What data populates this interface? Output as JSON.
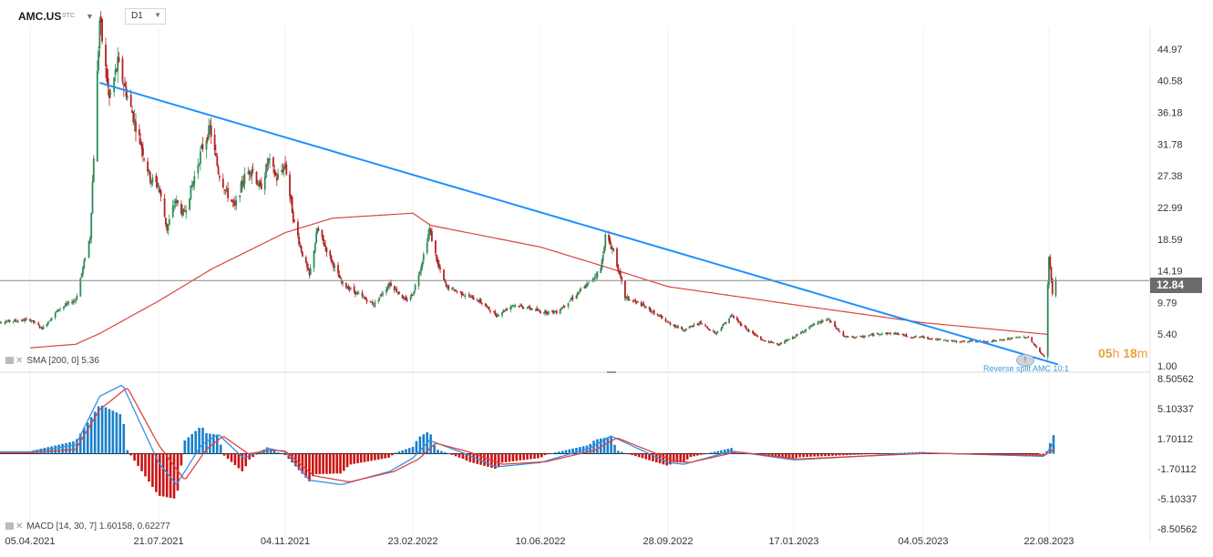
{
  "header": {
    "symbol": "AMC.US",
    "symbol_type": "STC",
    "timeframe": "D1"
  },
  "price_panel": {
    "current_price_label": "12.84",
    "y_ticks": [
      "44.97",
      "40.58",
      "36.18",
      "31.78",
      "27.38",
      "22.99",
      "18.59",
      "14.19",
      "9.79",
      "5.40",
      "1.00"
    ],
    "indicator_legend": "SMA [200, 0] 5.36",
    "countdown": {
      "h": "05",
      "m": "18"
    },
    "annotation": "Reverse split AMC 10:1"
  },
  "macd_panel": {
    "legend": "MACD [14, 30, 7] 1.60158, 0.62277",
    "y_ticks": [
      "8.50562",
      "5.10337",
      "1.70112",
      "-1.70112",
      "-5.10337",
      "-8.50562"
    ]
  },
  "x_axis": {
    "dates": [
      "05.04.2021",
      "21.07.2021",
      "04.11.2021",
      "23.02.2022",
      "10.06.2022",
      "28.09.2022",
      "17.01.2023",
      "04.05.2023",
      "22.08.2023"
    ]
  },
  "colors": {
    "up": "#2e8b57",
    "down": "#b22222",
    "sma": "#d9453f",
    "trendline": "#1e90ff",
    "macd_line": "#3a8ee6",
    "signal_line": "#d9453f",
    "hist_pos": "#1a7fc9",
    "hist_neg": "#cc1111"
  },
  "chart_data": {
    "type": "candlestick",
    "title": "AMC.US D1",
    "price_ylim": [
      1.0,
      49.0
    ],
    "current_price": 12.84,
    "price_path": [
      [
        "05.04.2021",
        7.4
      ],
      [
        "15.04.2021",
        6.2
      ],
      [
        "29.04.2021",
        8.9
      ],
      [
        "13.05.2021",
        10.2
      ],
      [
        "25.05.2021",
        19.0
      ],
      [
        "02.06.2021",
        49.0
      ],
      [
        "10.06.2021",
        38.0
      ],
      [
        "17.06.2021",
        43.0
      ],
      [
        "25.06.2021",
        38.5
      ],
      [
        "06.07.2021",
        32.0
      ],
      [
        "14.07.2021",
        27.0
      ],
      [
        "21.07.2021",
        26.0
      ],
      [
        "28.07.2021",
        20.0
      ],
      [
        "04.08.2021",
        24.0
      ],
      [
        "11.08.2021",
        22.0
      ],
      [
        "18.08.2021",
        26.0
      ],
      [
        "26.08.2021",
        31.0
      ],
      [
        "02.09.2021",
        34.0
      ],
      [
        "09.09.2021",
        28.0
      ],
      [
        "16.09.2021",
        25.0
      ],
      [
        "23.09.2021",
        23.0
      ],
      [
        "30.09.2021",
        27.0
      ],
      [
        "07.10.2021",
        28.5
      ],
      [
        "14.10.2021",
        25.5
      ],
      [
        "21.10.2021",
        29.5
      ],
      [
        "28.10.2021",
        27.0
      ],
      [
        "04.11.2021",
        29.0
      ],
      [
        "11.11.2021",
        21.5
      ],
      [
        "18.11.2021",
        17.0
      ],
      [
        "25.11.2021",
        13.5
      ],
      [
        "02.12.2021",
        20.0
      ],
      [
        "09.12.2021",
        17.5
      ],
      [
        "16.12.2021",
        15.0
      ],
      [
        "23.12.2021",
        12.5
      ],
      [
        "06.01.2022",
        11.0
      ],
      [
        "20.01.2022",
        9.5
      ],
      [
        "03.02.2022",
        12.5
      ],
      [
        "17.02.2022",
        10.0
      ],
      [
        "23.02.2022",
        11.0
      ],
      [
        "02.03.2022",
        15.0
      ],
      [
        "09.03.2022",
        20.0
      ],
      [
        "16.03.2022",
        15.0
      ],
      [
        "23.03.2022",
        12.0
      ],
      [
        "06.04.2022",
        11.0
      ],
      [
        "20.04.2022",
        10.0
      ],
      [
        "04.05.2022",
        8.0
      ],
      [
        "18.05.2022",
        9.5
      ],
      [
        "01.06.2022",
        9.0
      ],
      [
        "10.06.2022",
        8.5
      ],
      [
        "24.06.2022",
        8.5
      ],
      [
        "08.07.2022",
        10.5
      ],
      [
        "22.07.2022",
        12.5
      ],
      [
        "01.08.2022",
        14.5
      ],
      [
        "05.08.2022",
        19.0
      ],
      [
        "12.08.2022",
        17.0
      ],
      [
        "22.08.2022",
        10.5
      ],
      [
        "05.09.2022",
        9.5
      ],
      [
        "19.09.2022",
        8.0
      ],
      [
        "28.09.2022",
        7.0
      ],
      [
        "12.10.2022",
        6.0
      ],
      [
        "26.10.2022",
        7.0
      ],
      [
        "09.11.2022",
        5.5
      ],
      [
        "23.11.2022",
        8.0
      ],
      [
        "07.12.2022",
        6.0
      ],
      [
        "21.12.2022",
        4.5
      ],
      [
        "04.01.2023",
        4.0
      ],
      [
        "17.01.2023",
        5.0
      ],
      [
        "31.01.2023",
        6.5
      ],
      [
        "14.02.2023",
        7.5
      ],
      [
        "28.02.2023",
        5.0
      ],
      [
        "14.03.2023",
        5.0
      ],
      [
        "28.03.2023",
        5.5
      ],
      [
        "11.04.2023",
        5.5
      ],
      [
        "25.04.2023",
        5.0
      ],
      [
        "04.05.2023",
        5.0
      ],
      [
        "18.05.2023",
        4.6
      ],
      [
        "01.06.2023",
        4.4
      ],
      [
        "15.06.2023",
        4.4
      ],
      [
        "29.06.2023",
        4.4
      ],
      [
        "13.07.2023",
        4.6
      ],
      [
        "27.07.2023",
        5.0
      ],
      [
        "04.08.2023",
        5.0
      ],
      [
        "11.08.2023",
        3.5
      ],
      [
        "18.08.2023",
        2.2
      ],
      [
        "22.08.2023",
        16.0
      ],
      [
        "24.08.2023",
        13.0
      ],
      [
        "25.08.2023",
        11.0
      ],
      [
        "28.08.2023",
        12.84
      ]
    ],
    "sma_200": [
      [
        "05.04.2021",
        3.5
      ],
      [
        "13.05.2021",
        4.0
      ],
      [
        "02.06.2021",
        5.5
      ],
      [
        "21.07.2021",
        10.0
      ],
      [
        "04.09.2021",
        14.5
      ],
      [
        "04.11.2021",
        19.5
      ],
      [
        "15.12.2021",
        21.5
      ],
      [
        "23.02.2022",
        22.2
      ],
      [
        "10.03.2022",
        20.5
      ],
      [
        "10.06.2022",
        17.5
      ],
      [
        "10.08.2022",
        14.5
      ],
      [
        "28.09.2022",
        12.0
      ],
      [
        "17.01.2023",
        9.5
      ],
      [
        "04.05.2023",
        7.0
      ],
      [
        "22.08.2023",
        5.36
      ]
    ],
    "trendline": [
      [
        "02.06.2021",
        40.3
      ],
      [
        "30.08.2023",
        1.2
      ]
    ],
    "macd": {
      "params": [
        14,
        30,
        7
      ],
      "macd_value": 1.60158,
      "signal_value": 0.62277,
      "ylim": [
        -8.50562,
        8.50562
      ],
      "macd_line": [
        [
          "05.04.2021",
          0.2
        ],
        [
          "13.05.2021",
          1.0
        ],
        [
          "02.06.2021",
          6.5
        ],
        [
          "21.06.2021",
          7.8
        ],
        [
          "21.07.2021",
          -1.0
        ],
        [
          "05.08.2021",
          -3.5
        ],
        [
          "26.08.2021",
          1.0
        ],
        [
          "09.09.2021",
          2.2
        ],
        [
          "30.09.2021",
          -0.5
        ],
        [
          "21.10.2021",
          0.6
        ],
        [
          "04.11.2021",
          0.2
        ],
        [
          "25.11.2021",
          -3.0
        ],
        [
          "23.12.2021",
          -3.5
        ],
        [
          "03.02.2022",
          -2.0
        ],
        [
          "23.02.2022",
          -0.5
        ],
        [
          "09.03.2022",
          1.5
        ],
        [
          "06.04.2022",
          0.1
        ],
        [
          "04.05.2022",
          -1.5
        ],
        [
          "10.06.2022",
          -1.0
        ],
        [
          "22.07.2022",
          0.6
        ],
        [
          "10.08.2022",
          2.0
        ],
        [
          "28.09.2022",
          -1.0
        ],
        [
          "12.10.2022",
          -1.2
        ],
        [
          "23.11.2022",
          0.3
        ],
        [
          "17.01.2023",
          -0.7
        ],
        [
          "04.05.2023",
          0.1
        ],
        [
          "18.08.2023",
          -0.3
        ],
        [
          "28.08.2023",
          1.60158
        ]
      ],
      "signal_line": [
        [
          "05.04.2021",
          0.1
        ],
        [
          "13.05.2021",
          0.5
        ],
        [
          "02.06.2021",
          5.0
        ],
        [
          "25.06.2021",
          7.5
        ],
        [
          "21.07.2021",
          1.0
        ],
        [
          "12.08.2021",
          -3.0
        ],
        [
          "30.08.2021",
          0.5
        ],
        [
          "13.09.2021",
          2.0
        ],
        [
          "04.10.2021",
          0.0
        ],
        [
          "25.10.2021",
          0.4
        ],
        [
          "04.11.2021",
          0.3
        ],
        [
          "29.11.2021",
          -2.5
        ],
        [
          "30.12.2021",
          -3.2
        ],
        [
          "07.02.2022",
          -2.0
        ],
        [
          "28.02.2022",
          -0.6
        ],
        [
          "14.03.2022",
          1.2
        ],
        [
          "11.04.2022",
          0.2
        ],
        [
          "09.05.2022",
          -1.2
        ],
        [
          "15.06.2022",
          -0.9
        ],
        [
          "27.07.2022",
          0.4
        ],
        [
          "15.08.2022",
          1.8
        ],
        [
          "03.10.2022",
          -0.8
        ],
        [
          "17.10.2022",
          -1.0
        ],
        [
          "28.11.2022",
          0.2
        ],
        [
          "20.01.2023",
          -0.6
        ],
        [
          "09.05.2023",
          0.05
        ],
        [
          "18.08.2023",
          -0.2
        ],
        [
          "28.08.2023",
          0.62277
        ]
      ]
    },
    "x_labels": [
      "05.04.2021",
      "21.07.2021",
      "04.11.2021",
      "23.02.2022",
      "10.06.2022",
      "28.09.2022",
      "17.01.2023",
      "04.05.2023",
      "22.08.2023"
    ]
  }
}
